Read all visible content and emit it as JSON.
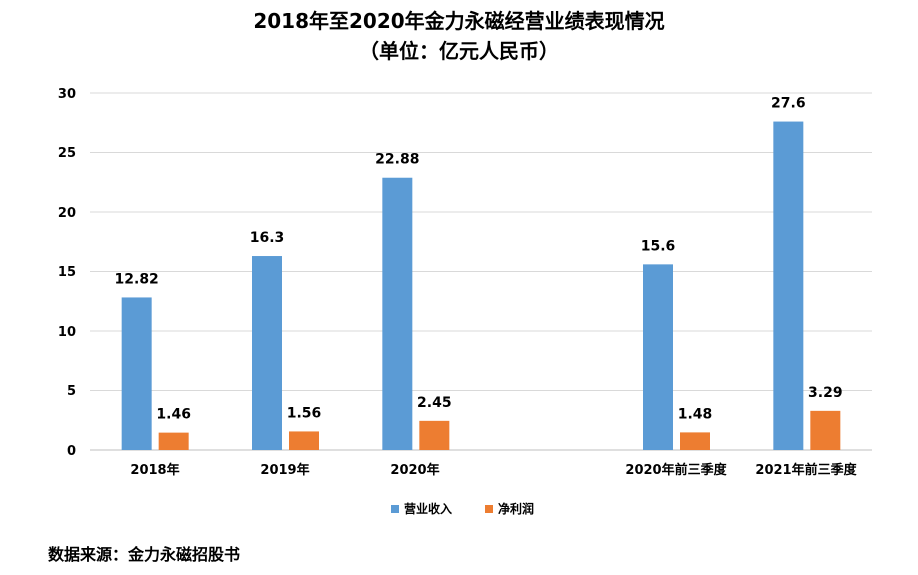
{
  "chart_data": {
    "type": "bar",
    "title": "2018年至2020年金力永磁经营业绩表现情况",
    "subtitle": "（单位：亿元人民币）",
    "categories": [
      "2018年",
      "2019年",
      "2020年",
      "",
      "2020年前三季度",
      "2021年前三季度"
    ],
    "series": [
      {
        "name": "营业收入",
        "color": "#5B9BD5",
        "values": [
          12.82,
          16.3,
          22.88,
          null,
          15.6,
          27.6
        ],
        "labels": [
          "12.82",
          "16.3",
          "22.88",
          "",
          "15.6",
          "27.6"
        ]
      },
      {
        "name": "净利润",
        "color": "#ED7D31",
        "values": [
          1.46,
          1.56,
          2.45,
          null,
          1.48,
          3.29
        ],
        "labels": [
          "1.46",
          "1.56",
          "2.45",
          "",
          "1.48",
          "3.29"
        ]
      }
    ],
    "yticks": [
      "0",
      "5",
      "10",
      "15",
      "20",
      "25",
      "30"
    ],
    "ylim": [
      0,
      30
    ],
    "grid": true,
    "legend_position": "bottom"
  },
  "source": "数据来源：金力永磁招股书"
}
